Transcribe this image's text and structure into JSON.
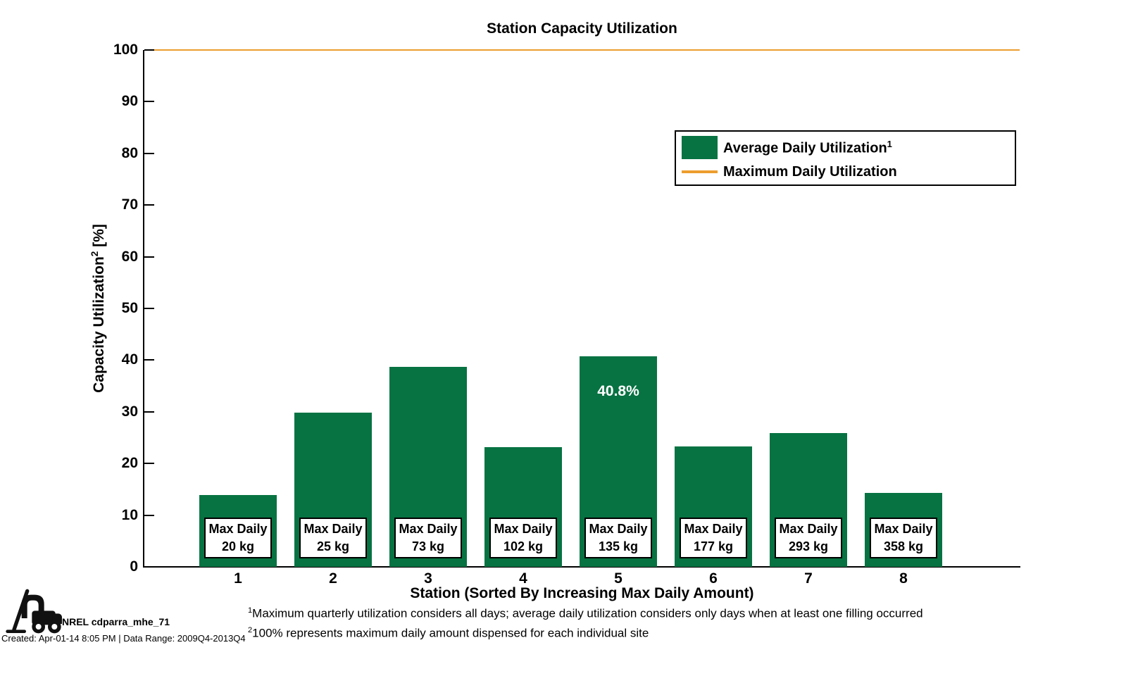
{
  "chart_data": {
    "type": "bar",
    "title": "Station Capacity Utilization",
    "xlabel": "Station (Sorted By Increasing Max Daily Amount)",
    "ylabel": "Capacity Utilization",
    "ylabel_sup": "2",
    "ylabel_unit": "[%]",
    "ylim": [
      0,
      100
    ],
    "ytick_step": 10,
    "grid": false,
    "legend_position": "upper right",
    "categories": [
      "1",
      "2",
      "3",
      "4",
      "5",
      "6",
      "7",
      "8"
    ],
    "series": [
      {
        "name": "Average Daily Utilization",
        "name_sup": "1",
        "type": "bar",
        "color": "#077342",
        "values": [
          13.9,
          29.9,
          38.7,
          23.1,
          40.8,
          23.3,
          25.9,
          14.3
        ]
      },
      {
        "name": "Maximum Daily Utilization",
        "type": "line",
        "color": "#EC9E2E",
        "value": 100
      }
    ],
    "bar_annotations": [
      {
        "index": 4,
        "label": "40.8%"
      }
    ],
    "max_daily": {
      "title": "Max Daily",
      "amounts": [
        "20 kg",
        "25 kg",
        "73 kg",
        "102 kg",
        "135 kg",
        "177 kg",
        "293 kg",
        "358 kg"
      ]
    }
  },
  "footnotes": [
    {
      "sup": "1",
      "text": "Maximum quarterly utilization considers all days; average daily utilization considers only days when at least one filling occurred"
    },
    {
      "sup": "2",
      "text": "100% represents maximum daily amount dispensed for each individual site"
    }
  ],
  "footer": {
    "logo_icon": "forklift-with-droplet-icon",
    "label": "NREL cdparra_mhe_71",
    "created": "Created: Apr-01-14  8:05 PM | Data Range: 2009Q4-2013Q4"
  }
}
